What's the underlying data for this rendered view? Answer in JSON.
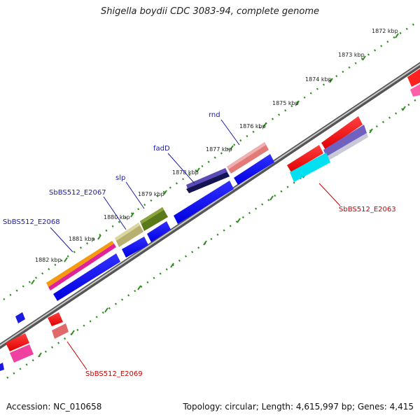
{
  "title": "Shigella boydii CDC 3083-94, complete genome",
  "footer": {
    "accession": "Accession: NC_010658",
    "summary": "Topology: circular; Length: 4,615,997 bp; Genes: 4,415"
  },
  "colors": {
    "backbone": "#7f7f7f",
    "ruler": "#2e8b1e",
    "gene_label_top": "#1a1aa8",
    "gene_label_bottom": "#cc0000"
  },
  "ruler_ticks": [
    "1872 kbp",
    "1873 kbp",
    "1874 kbp",
    "1875 kbp",
    "1876 kbp",
    "1877 kbp",
    "1878 kbp",
    "1879 kbp",
    "1880 kbp",
    "1881 kbp",
    "1882 kbp"
  ],
  "gene_labels": [
    {
      "id": "rnd",
      "text": "rnd",
      "side": "top"
    },
    {
      "id": "fadD",
      "text": "fadD",
      "side": "top"
    },
    {
      "id": "slp",
      "text": "slp",
      "side": "top"
    },
    {
      "id": "e2067",
      "text": "SbBS512_E2067",
      "side": "top"
    },
    {
      "id": "e2068",
      "text": "SbBS512_E2068",
      "side": "top"
    },
    {
      "id": "e2063",
      "text": "SbBS512_E2063",
      "side": "bottom"
    },
    {
      "id": "e2069",
      "text": "SbBS512_E2069",
      "side": "bottom"
    }
  ]
}
